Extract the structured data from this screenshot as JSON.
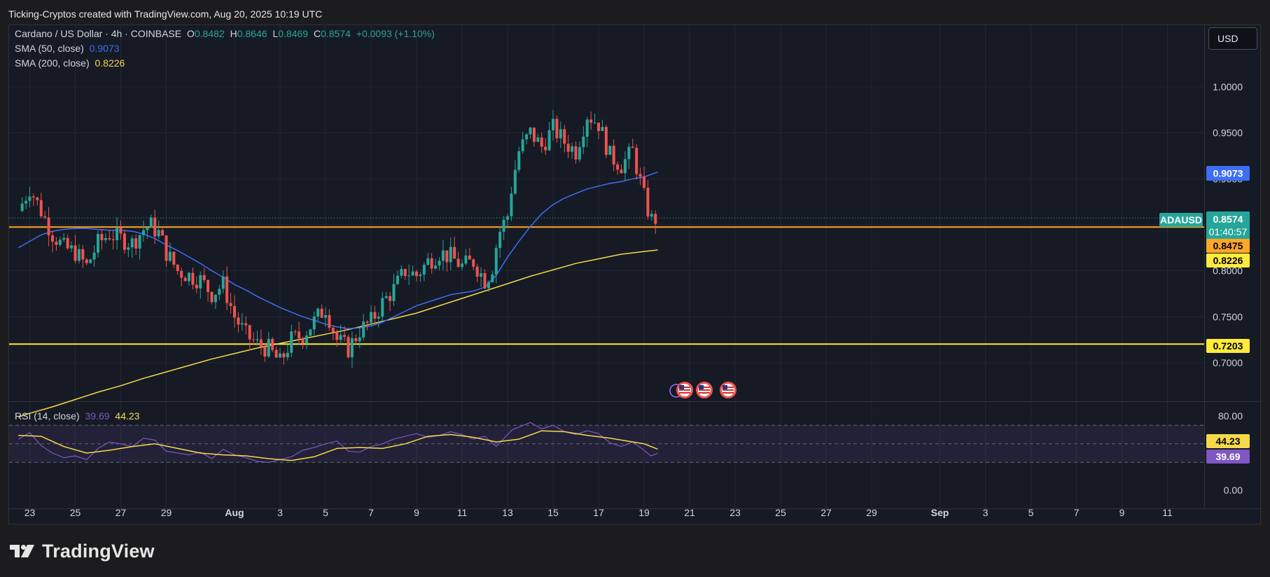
{
  "header": {
    "credit": "Ticking-Cryptos created with TradingView.com, Aug 20, 2025 10:19 UTC"
  },
  "legend": {
    "symbol": "Cardano / US Dollar · 4h · COINBASE",
    "o_label": "O",
    "o": "0.8482",
    "h_label": "H",
    "h": "0.8646",
    "l_label": "L",
    "l": "0.8469",
    "c_label": "C",
    "c": "0.8574",
    "change": "+0.0093 (+1.10%)",
    "sma50_label": "SMA (50, close)",
    "sma50_value": "0.9073",
    "sma200_label": "SMA (200, close)",
    "sma200_value": "0.8226",
    "rsi_label": "RSI (14, close)",
    "rsi_value": "39.69",
    "rsi_ma_value": "44.23"
  },
  "toolbar": {
    "currency_label": "USD"
  },
  "badges": {
    "sma50": "0.9073",
    "ticker": "ADAUSD",
    "price": "0.8574",
    "countdown": "01:40:57",
    "resistance": "0.8475",
    "sma200": "0.8226",
    "support": "0.7203",
    "rsi_ma": "44.23",
    "rsi": "39.69"
  },
  "colors": {
    "background": "#161a24",
    "up": "#26a69a",
    "down": "#ef5350",
    "sma50": "#3d6ef5",
    "sma200": "#f5d94a",
    "hline_orange": "#ffa726",
    "hline_yellow": "#ffeb3b",
    "rsi": "#7e57c2",
    "rsi_ma": "#f5d94a",
    "text": "#d1d4dc"
  },
  "footer": {
    "brand": "TradingView",
    "logo": "tradingview-logo-icon"
  },
  "event_icons": [
    "us-flag-icon",
    "us-flag-icon",
    "us-flag-icon"
  ],
  "chart_data": [
    {
      "type": "candlestick",
      "title": "Cardano / US Dollar · 4h · COINBASE",
      "x_ticks": [
        "23",
        "25",
        "27",
        "29",
        "Aug",
        "3",
        "5",
        "7",
        "9",
        "11",
        "13",
        "15",
        "17",
        "19",
        "21",
        "23",
        "25",
        "27",
        "29",
        "Sep",
        "3",
        "5",
        "7",
        "9",
        "11"
      ],
      "y_ticks": [
        "1.0000",
        "0.9500",
        "0.9000",
        "0.8500",
        "0.8000",
        "0.7500",
        "0.7000"
      ],
      "y_range": [
        0.66,
        1.03
      ],
      "ohlc_last": {
        "open": 0.8482,
        "high": 0.8646,
        "low": 0.8469,
        "close": 0.8574,
        "change": 0.0093,
        "change_pct": 1.1
      },
      "horizontal_lines": [
        {
          "value": 0.8475,
          "color": "#ffa726"
        },
        {
          "value": 0.7203,
          "color": "#ffeb3b"
        }
      ],
      "series": [
        {
          "name": "ADAUSD",
          "kind": "close",
          "x_days": [
            22.5,
            23.0,
            23.3,
            24.0,
            24.5,
            25.0,
            25.5,
            26.0,
            26.5,
            27.0,
            27.5,
            28.0,
            28.3,
            28.7,
            29.0,
            29.5,
            30.0,
            30.5,
            31.0,
            31.5,
            32.0,
            32.5,
            33.0,
            33.5,
            34.0,
            34.5,
            35.0,
            35.5,
            36.0,
            36.5,
            37.0,
            37.5,
            38.0,
            38.5,
            39.0,
            39.5,
            40.0,
            40.5,
            41.0,
            41.5,
            42.0,
            42.5,
            43.0,
            43.3,
            43.6,
            44.0,
            44.2,
            44.5,
            45.0,
            45.5,
            46.0,
            46.5,
            47.0,
            47.5,
            48.0,
            48.5,
            49.0,
            49.5,
            50.0,
            50.3,
            50.6
          ],
          "values": [
            0.865,
            0.89,
            0.875,
            0.84,
            0.825,
            0.82,
            0.805,
            0.83,
            0.84,
            0.835,
            0.83,
            0.845,
            0.85,
            0.84,
            0.82,
            0.8,
            0.795,
            0.79,
            0.775,
            0.785,
            0.75,
            0.73,
            0.72,
            0.715,
            0.7,
            0.725,
            0.73,
            0.745,
            0.76,
            0.725,
            0.715,
            0.735,
            0.745,
            0.765,
            0.78,
            0.8,
            0.795,
            0.81,
            0.82,
            0.815,
            0.805,
            0.81,
            0.79,
            0.8,
            0.84,
            0.86,
            0.895,
            0.93,
            0.95,
            0.935,
            0.955,
            0.94,
            0.93,
            0.97,
            0.96,
            0.925,
            0.915,
            0.93,
            0.88,
            0.855,
            0.8574
          ]
        },
        {
          "name": "SMA (50, close)",
          "x_days": [
            22.5,
            23.0,
            23.5,
            24.0,
            24.5,
            25.0,
            25.5,
            26.0,
            26.5,
            27.0,
            27.5,
            28.0,
            28.5,
            29.0,
            29.5,
            30.0,
            30.5,
            31.0,
            31.5,
            32.0,
            32.5,
            33.0,
            33.5,
            34.0,
            34.5,
            35.0,
            35.5,
            36.0,
            36.5,
            37.0,
            37.5,
            38.0,
            38.5,
            39.0,
            39.5,
            40.0,
            40.5,
            41.0,
            41.5,
            42.0,
            42.5,
            43.0,
            43.5,
            44.0,
            44.5,
            45.0,
            45.5,
            46.0,
            46.5,
            47.0,
            47.5,
            48.0,
            48.5,
            49.0,
            49.5,
            50.0,
            50.6
          ],
          "values": [
            0.825,
            0.832,
            0.839,
            0.843,
            0.845,
            0.846,
            0.846,
            0.845,
            0.844,
            0.844,
            0.843,
            0.84,
            0.835,
            0.828,
            0.822,
            0.815,
            0.808,
            0.8,
            0.793,
            0.785,
            0.779,
            0.772,
            0.766,
            0.76,
            0.755,
            0.75,
            0.746,
            0.742,
            0.739,
            0.737,
            0.738,
            0.74,
            0.744,
            0.75,
            0.756,
            0.762,
            0.766,
            0.77,
            0.774,
            0.776,
            0.778,
            0.782,
            0.795,
            0.815,
            0.832,
            0.848,
            0.862,
            0.872,
            0.879,
            0.884,
            0.889,
            0.892,
            0.895,
            0.897,
            0.9,
            0.902,
            0.9073
          ]
        },
        {
          "name": "SMA (200, close)",
          "x_days": [
            22.5,
            23.0,
            24.0,
            25.0,
            26.0,
            27.0,
            28.0,
            29.0,
            30.0,
            31.0,
            32.0,
            33.0,
            34.0,
            35.0,
            36.0,
            37.0,
            38.0,
            39.0,
            40.0,
            41.0,
            42.0,
            43.0,
            44.0,
            45.0,
            46.0,
            47.0,
            48.0,
            49.0,
            50.0,
            50.6
          ],
          "values": [
            0.641,
            0.645,
            0.652,
            0.66,
            0.668,
            0.675,
            0.683,
            0.69,
            0.697,
            0.704,
            0.71,
            0.716,
            0.721,
            0.726,
            0.731,
            0.736,
            0.742,
            0.748,
            0.754,
            0.762,
            0.77,
            0.778,
            0.786,
            0.794,
            0.801,
            0.808,
            0.813,
            0.818,
            0.821,
            0.8226
          ]
        }
      ]
    },
    {
      "type": "line",
      "title": "RSI (14, close)",
      "y_ticks": [
        "80.00",
        "0.00"
      ],
      "y_range": [
        0,
        85
      ],
      "bands": [
        30,
        50,
        70
      ],
      "series": [
        {
          "name": "RSI (14, close)",
          "x_days": [
            22.5,
            23.0,
            23.5,
            24.0,
            24.5,
            25.0,
            25.5,
            26.0,
            26.5,
            27.0,
            27.5,
            28.0,
            28.5,
            29.0,
            29.5,
            30.0,
            30.5,
            31.0,
            31.5,
            32.0,
            32.5,
            33.0,
            33.5,
            34.0,
            34.5,
            35.0,
            35.5,
            36.0,
            36.5,
            37.0,
            37.5,
            38.0,
            38.5,
            39.0,
            39.5,
            40.0,
            40.5,
            41.0,
            41.5,
            42.0,
            42.5,
            43.0,
            43.5,
            44.0,
            44.2,
            44.5,
            45.0,
            45.5,
            46.0,
            46.5,
            47.0,
            47.5,
            48.0,
            48.5,
            49.0,
            49.5,
            50.0,
            50.3,
            50.6
          ],
          "values": [
            55,
            62,
            48,
            40,
            35,
            37,
            33,
            45,
            52,
            50,
            47,
            56,
            54,
            42,
            40,
            38,
            41,
            34,
            44,
            38,
            35,
            31,
            30,
            33,
            36,
            43,
            46,
            50,
            53,
            42,
            41,
            47,
            50,
            55,
            58,
            61,
            57,
            59,
            63,
            60,
            55,
            58,
            47,
            60,
            65,
            68,
            73,
            66,
            70,
            63,
            60,
            64,
            61,
            51,
            47,
            52,
            43,
            37,
            39.69
          ]
        },
        {
          "name": "RSI-based MA",
          "x_days": [
            22.5,
            23.5,
            24.5,
            25.5,
            26.5,
            27.5,
            28.5,
            29.5,
            30.5,
            31.5,
            32.5,
            33.5,
            34.5,
            35.5,
            36.5,
            37.5,
            38.5,
            39.5,
            40.5,
            41.5,
            42.5,
            43.5,
            44.5,
            45.5,
            46.5,
            47.5,
            48.5,
            49.5,
            50.0,
            50.6
          ],
          "values": [
            59,
            58,
            47,
            40,
            43,
            47,
            50,
            45,
            40,
            38,
            37,
            34,
            32,
            36,
            45,
            46,
            45,
            50,
            58,
            60,
            57,
            52,
            55,
            64,
            63,
            59,
            56,
            52,
            50,
            44.23
          ]
        }
      ]
    }
  ]
}
